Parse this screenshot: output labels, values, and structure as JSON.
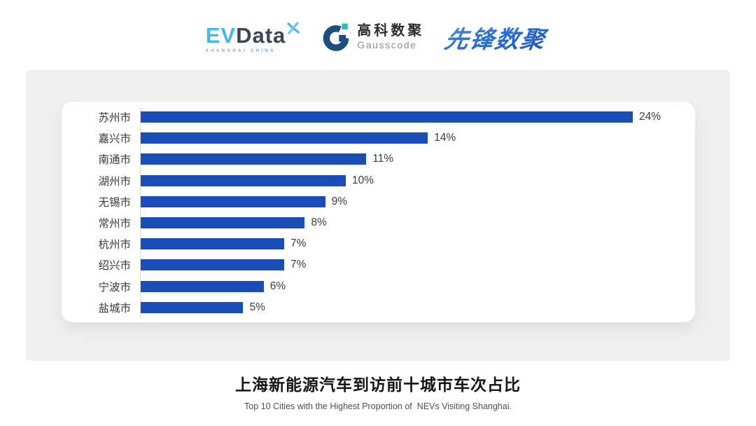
{
  "header": {
    "evdata": {
      "ev": "EV",
      "data": "Data",
      "sub_left": "SHANGHAI",
      "sub_right": "CHINA"
    },
    "gausscode": {
      "cn": "高科数聚",
      "en": "Gausscode"
    },
    "pioneer": {
      "text": "先锋数聚"
    }
  },
  "chart_data": {
    "type": "bar",
    "orientation": "horizontal",
    "title": "上海新能源汽车到访前十城市车次占比",
    "subtitle": "Top 10 Cities with the Highest Proportion of  NEVs Visiting Shanghai.",
    "categories": [
      "苏州市",
      "嘉兴市",
      "南通市",
      "湖州市",
      "无锡市",
      "常州市",
      "杭州市",
      "绍兴市",
      "宁波市",
      "盐城市"
    ],
    "values": [
      24,
      14,
      11,
      10,
      9,
      8,
      7,
      7,
      6,
      5
    ],
    "value_labels": [
      "24%",
      "14%",
      "11%",
      "10%",
      "9%",
      "8%",
      "7%",
      "7%",
      "6%",
      "5%"
    ],
    "xlim": [
      0,
      24
    ],
    "xlabel": "",
    "ylabel": "",
    "grid": false,
    "legend": false,
    "bar_color": "#1a4db8",
    "axis_line_color": "#d8d8d8"
  },
  "footer": {
    "title": "上海新能源汽车到访前十城市车次占比",
    "subtitle": "Top 10 Cities with the Highest Proportion of  NEVs Visiting Shanghai."
  },
  "colors": {
    "panel_bg": "#efefef",
    "card_bg": "#ffffff",
    "bar_blue": "#1a4db8",
    "evdata_blue": "#49b6e8",
    "evdata_dark": "#3b4656",
    "gauss_navy": "#1d4e7d",
    "gauss_teal": "#2fb5ba",
    "pioneer_blue": "#2e6fd0"
  }
}
